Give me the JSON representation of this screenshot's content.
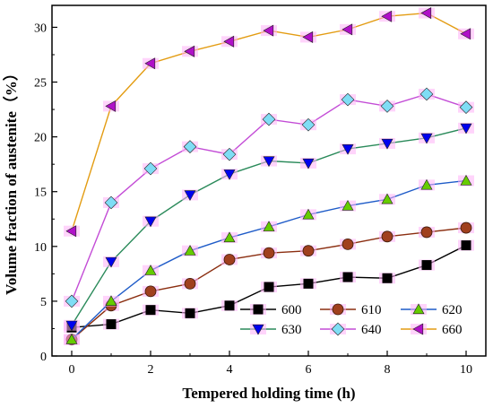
{
  "chart_data": {
    "type": "line",
    "xlabel": "Tempered holding time (h)",
    "ylabel": "Volume fraction of austenite（%）",
    "xlim": [
      -0.5,
      10.5
    ],
    "ylim": [
      0,
      32
    ],
    "xticks": [
      0,
      2,
      4,
      6,
      8,
      10
    ],
    "yticks": [
      0,
      5,
      10,
      15,
      20,
      25,
      30
    ],
    "grid": false,
    "legend_placement": "bottom-right",
    "legend_columns": 3,
    "x": [
      0,
      1,
      2,
      3,
      4,
      5,
      6,
      7,
      8,
      9,
      10
    ],
    "series": [
      {
        "name": "600",
        "color": "#000000",
        "marker": "square",
        "values": [
          2.6,
          2.9,
          4.2,
          3.9,
          4.6,
          6.3,
          6.6,
          7.2,
          7.1,
          8.3,
          10.1
        ]
      },
      {
        "name": "610",
        "color": "#8B2E10",
        "marker": "circle",
        "values": [
          1.5,
          4.6,
          5.9,
          6.6,
          8.8,
          9.4,
          9.6,
          10.2,
          10.9,
          11.3,
          11.7
        ]
      },
      {
        "name": "620",
        "color": "#1E5BC8",
        "marker": "triangle-up",
        "values": [
          1.5,
          5.0,
          7.8,
          9.6,
          10.8,
          11.8,
          12.9,
          13.7,
          14.3,
          15.6,
          16.0
        ]
      },
      {
        "name": "630",
        "color": "#2A8A5A",
        "marker": "triangle-down",
        "values": [
          2.8,
          8.6,
          12.3,
          14.7,
          16.6,
          17.8,
          17.6,
          18.9,
          19.4,
          19.9,
          20.8
        ]
      },
      {
        "name": "640",
        "color": "#C34CD6",
        "marker": "diamond",
        "values": [
          5.0,
          14.0,
          17.1,
          19.1,
          18.4,
          21.6,
          21.1,
          23.4,
          22.8,
          23.9,
          22.7
        ]
      },
      {
        "name": "660",
        "color": "#E39C12",
        "marker": "triangle-left",
        "values": [
          11.4,
          22.8,
          26.7,
          27.8,
          28.7,
          29.7,
          29.1,
          29.8,
          31.0,
          31.3,
          29.4
        ]
      }
    ],
    "marker_colors": {
      "square": "#000000",
      "circle": "#A0401E",
      "triangle-up": "#66CC00",
      "triangle-down": "#0000EE",
      "diamond": "#7FDDF5",
      "triangle-left": "#B010C8"
    },
    "marker_halo_color": "#FFB0F8"
  }
}
